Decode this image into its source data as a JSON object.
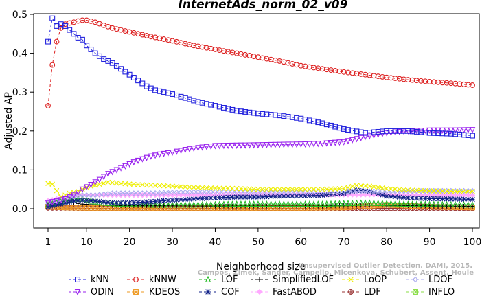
{
  "chart_data": {
    "type": "line",
    "title": "InternetAds_norm_02_v09",
    "xlabel": "Neighborhood size",
    "ylabel": "Adjusted AP",
    "xlim": [
      1,
      100
    ],
    "ylim": [
      -0.05,
      0.5
    ],
    "xticks": [
      "1",
      "10",
      "20",
      "30",
      "40",
      "50",
      "60",
      "70",
      "80",
      "90",
      "100"
    ],
    "yticks": [
      "0.0",
      "0.1",
      "0.2",
      "0.3",
      "0.4",
      "0.5"
    ],
    "watermark": {
      "line1": "Campos, Zimek, Sander, Campello, Micenkova, Schubert, Assent, Houle",
      "line2": "Unsupervised Outlier Detection. DAMI, 2015."
    },
    "series": [
      {
        "name": "kNN",
        "color": "#2222dd",
        "marker": "square",
        "dash": "4,3",
        "points": [
          [
            1,
            0.43
          ],
          [
            2,
            0.49
          ],
          [
            3,
            0.47
          ],
          [
            4,
            0.475
          ],
          [
            5,
            0.47
          ],
          [
            6,
            0.46
          ],
          [
            7,
            0.45
          ],
          [
            8,
            0.44
          ],
          [
            9,
            0.435
          ],
          [
            10,
            0.42
          ],
          [
            12,
            0.4
          ],
          [
            14,
            0.385
          ],
          [
            16,
            0.375
          ],
          [
            18,
            0.36
          ],
          [
            20,
            0.345
          ],
          [
            22,
            0.33
          ],
          [
            24,
            0.315
          ],
          [
            26,
            0.305
          ],
          [
            28,
            0.3
          ],
          [
            30,
            0.295
          ],
          [
            33,
            0.285
          ],
          [
            36,
            0.275
          ],
          [
            40,
            0.265
          ],
          [
            45,
            0.252
          ],
          [
            50,
            0.245
          ],
          [
            55,
            0.24
          ],
          [
            60,
            0.232
          ],
          [
            65,
            0.22
          ],
          [
            70,
            0.205
          ],
          [
            75,
            0.195
          ],
          [
            80,
            0.2
          ],
          [
            85,
            0.2
          ],
          [
            90,
            0.195
          ],
          [
            95,
            0.193
          ],
          [
            100,
            0.188
          ]
        ]
      },
      {
        "name": "kNNW",
        "color": "#dd2222",
        "marker": "circle",
        "dash": "4,3",
        "points": [
          [
            1,
            0.265
          ],
          [
            2,
            0.37
          ],
          [
            3,
            0.43
          ],
          [
            4,
            0.465
          ],
          [
            5,
            0.475
          ],
          [
            6,
            0.478
          ],
          [
            7,
            0.48
          ],
          [
            8,
            0.483
          ],
          [
            9,
            0.485
          ],
          [
            10,
            0.485
          ],
          [
            12,
            0.48
          ],
          [
            14,
            0.472
          ],
          [
            16,
            0.465
          ],
          [
            18,
            0.46
          ],
          [
            20,
            0.455
          ],
          [
            25,
            0.443
          ],
          [
            30,
            0.432
          ],
          [
            35,
            0.42
          ],
          [
            40,
            0.41
          ],
          [
            45,
            0.4
          ],
          [
            50,
            0.39
          ],
          [
            55,
            0.38
          ],
          [
            60,
            0.368
          ],
          [
            65,
            0.36
          ],
          [
            70,
            0.352
          ],
          [
            75,
            0.345
          ],
          [
            80,
            0.338
          ],
          [
            85,
            0.332
          ],
          [
            90,
            0.327
          ],
          [
            95,
            0.323
          ],
          [
            100,
            0.318
          ]
        ]
      },
      {
        "name": "LOF",
        "color": "#22bb22",
        "marker": "triangle-up",
        "dash": "4,3",
        "points": [
          [
            1,
            0.01
          ],
          [
            3,
            0.015
          ],
          [
            5,
            0.02
          ],
          [
            7,
            0.025
          ],
          [
            9,
            0.025
          ],
          [
            11,
            0.02
          ],
          [
            14,
            0.015
          ],
          [
            18,
            0.012
          ],
          [
            25,
            0.01
          ],
          [
            35,
            0.01
          ],
          [
            45,
            0.012
          ],
          [
            55,
            0.012
          ],
          [
            65,
            0.012
          ],
          [
            75,
            0.015
          ],
          [
            85,
            0.012
          ],
          [
            100,
            0.01
          ]
        ]
      },
      {
        "name": "SimplifiedLOF",
        "color": "#000000",
        "marker": "plus",
        "dash": "4,3",
        "points": [
          [
            1,
            0.01
          ],
          [
            3,
            0.01
          ],
          [
            5,
            0.015
          ],
          [
            7,
            0.015
          ],
          [
            9,
            0.012
          ],
          [
            12,
            0.01
          ],
          [
            18,
            0.008
          ],
          [
            25,
            0.008
          ],
          [
            35,
            0.007
          ],
          [
            45,
            0.007
          ],
          [
            55,
            0.007
          ],
          [
            65,
            0.007
          ],
          [
            75,
            0.01
          ],
          [
            85,
            0.008
          ],
          [
            100,
            0.006
          ]
        ]
      },
      {
        "name": "LoOP",
        "color": "#eeee00",
        "marker": "x",
        "dash": "4,3",
        "points": [
          [
            1,
            0.065
          ],
          [
            2,
            0.063
          ],
          [
            4,
            0.03
          ],
          [
            6,
            0.04
          ],
          [
            8,
            0.045
          ],
          [
            10,
            0.055
          ],
          [
            12,
            0.06
          ],
          [
            15,
            0.068
          ],
          [
            18,
            0.065
          ],
          [
            22,
            0.062
          ],
          [
            26,
            0.06
          ],
          [
            30,
            0.058
          ],
          [
            35,
            0.055
          ],
          [
            40,
            0.053
          ],
          [
            45,
            0.052
          ],
          [
            50,
            0.05
          ],
          [
            55,
            0.05
          ],
          [
            60,
            0.05
          ],
          [
            65,
            0.05
          ],
          [
            70,
            0.052
          ],
          [
            73,
            0.06
          ],
          [
            76,
            0.058
          ],
          [
            80,
            0.052
          ],
          [
            85,
            0.048
          ],
          [
            90,
            0.046
          ],
          [
            95,
            0.045
          ],
          [
            100,
            0.045
          ]
        ]
      },
      {
        "name": "LDOF",
        "color": "#aaaaee",
        "marker": "diamond",
        "dash": "4,3",
        "points": [
          [
            1,
            0.015
          ],
          [
            3,
            0.02
          ],
          [
            6,
            0.03
          ],
          [
            9,
            0.035
          ],
          [
            12,
            0.035
          ],
          [
            16,
            0.04
          ],
          [
            20,
            0.04
          ],
          [
            25,
            0.04
          ],
          [
            30,
            0.042
          ],
          [
            35,
            0.043
          ],
          [
            40,
            0.043
          ],
          [
            45,
            0.043
          ],
          [
            50,
            0.042
          ],
          [
            55,
            0.042
          ],
          [
            60,
            0.042
          ],
          [
            65,
            0.043
          ],
          [
            70,
            0.045
          ],
          [
            75,
            0.045
          ],
          [
            80,
            0.045
          ],
          [
            85,
            0.045
          ],
          [
            90,
            0.046
          ],
          [
            95,
            0.046
          ],
          [
            100,
            0.046
          ]
        ]
      },
      {
        "name": "ODIN",
        "color": "#9922ee",
        "marker": "triangle-down",
        "dash": "4,3",
        "points": [
          [
            1,
            0.015
          ],
          [
            3,
            0.02
          ],
          [
            5,
            0.025
          ],
          [
            7,
            0.035
          ],
          [
            9,
            0.05
          ],
          [
            11,
            0.062
          ],
          [
            13,
            0.075
          ],
          [
            15,
            0.09
          ],
          [
            17,
            0.1
          ],
          [
            19,
            0.11
          ],
          [
            21,
            0.12
          ],
          [
            23,
            0.128
          ],
          [
            25,
            0.135
          ],
          [
            27,
            0.14
          ],
          [
            30,
            0.145
          ],
          [
            33,
            0.152
          ],
          [
            36,
            0.157
          ],
          [
            40,
            0.162
          ],
          [
            45,
            0.163
          ],
          [
            50,
            0.164
          ],
          [
            55,
            0.165
          ],
          [
            60,
            0.166
          ],
          [
            65,
            0.168
          ],
          [
            70,
            0.172
          ],
          [
            75,
            0.185
          ],
          [
            80,
            0.195
          ],
          [
            85,
            0.2
          ],
          [
            90,
            0.202
          ],
          [
            95,
            0.202
          ],
          [
            100,
            0.203
          ]
        ]
      },
      {
        "name": "KDEOS",
        "color": "#ee9922",
        "marker": "x-square",
        "dash": "4,3",
        "points": [
          [
            1,
            0.005
          ],
          [
            5,
            0.003
          ],
          [
            10,
            0.002
          ],
          [
            20,
            0.002
          ],
          [
            30,
            0.002
          ],
          [
            40,
            0.002
          ],
          [
            50,
            0.002
          ],
          [
            60,
            0.002
          ],
          [
            70,
            0.003
          ],
          [
            80,
            0.01
          ],
          [
            90,
            0.005
          ],
          [
            100,
            0.003
          ]
        ]
      },
      {
        "name": "COF",
        "color": "#112288",
        "marker": "star",
        "dash": "4,3",
        "points": [
          [
            1,
            0.005
          ],
          [
            3,
            0.01
          ],
          [
            5,
            0.015
          ],
          [
            7,
            0.02
          ],
          [
            9,
            0.022
          ],
          [
            12,
            0.02
          ],
          [
            16,
            0.015
          ],
          [
            20,
            0.015
          ],
          [
            25,
            0.018
          ],
          [
            30,
            0.022
          ],
          [
            35,
            0.025
          ],
          [
            40,
            0.028
          ],
          [
            45,
            0.03
          ],
          [
            50,
            0.03
          ],
          [
            55,
            0.032
          ],
          [
            60,
            0.033
          ],
          [
            65,
            0.035
          ],
          [
            70,
            0.04
          ],
          [
            73,
            0.048
          ],
          [
            76,
            0.045
          ],
          [
            80,
            0.032
          ],
          [
            85,
            0.028
          ],
          [
            90,
            0.026
          ],
          [
            95,
            0.025
          ],
          [
            100,
            0.024
          ]
        ]
      },
      {
        "name": "FastABOD",
        "color": "#ffaaff",
        "marker": "diamond-filled",
        "dash": "4,3",
        "points": [
          [
            1,
            0.02
          ],
          [
            5,
            0.03
          ],
          [
            10,
            0.035
          ],
          [
            20,
            0.035
          ],
          [
            30,
            0.035
          ],
          [
            40,
            0.036
          ],
          [
            50,
            0.036
          ],
          [
            60,
            0.036
          ],
          [
            70,
            0.036
          ],
          [
            80,
            0.036
          ],
          [
            90,
            0.035
          ],
          [
            100,
            0.035
          ]
        ]
      },
      {
        "name": "LDF",
        "color": "#993333",
        "marker": "circle-plus",
        "dash": "4,3",
        "points": [
          [
            1,
            0.002
          ],
          [
            5,
            0.002
          ],
          [
            10,
            0.001
          ],
          [
            20,
            0.001
          ],
          [
            30,
            0.001
          ],
          [
            40,
            0.001
          ],
          [
            50,
            0.001
          ],
          [
            60,
            0.001
          ],
          [
            70,
            0.001
          ],
          [
            80,
            0.001
          ],
          [
            90,
            0.001
          ],
          [
            100,
            0.001
          ]
        ]
      },
      {
        "name": "INFLO",
        "color": "#88dd44",
        "marker": "x-square",
        "dash": "4,3",
        "points": [
          [
            1,
            0.008
          ],
          [
            3,
            0.015
          ],
          [
            5,
            0.02
          ],
          [
            7,
            0.025
          ],
          [
            9,
            0.028
          ],
          [
            12,
            0.022
          ],
          [
            16,
            0.018
          ],
          [
            20,
            0.015
          ],
          [
            30,
            0.012
          ],
          [
            40,
            0.012
          ],
          [
            50,
            0.012
          ],
          [
            60,
            0.012
          ],
          [
            70,
            0.012
          ],
          [
            80,
            0.012
          ],
          [
            90,
            0.01
          ],
          [
            100,
            0.008
          ]
        ]
      }
    ]
  }
}
